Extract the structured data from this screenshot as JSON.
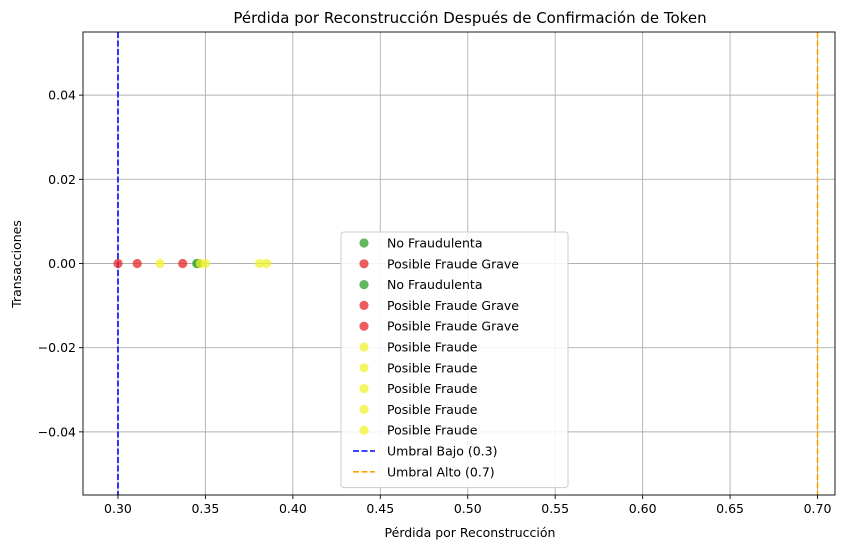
{
  "chart_data": {
    "type": "scatter",
    "title": "Pérdida por Reconstrucción Después de Confirmación de Token",
    "xlabel": "Pérdida por Reconstrucción",
    "ylabel": "Transacciones",
    "xlim": [
      0.28,
      0.71
    ],
    "ylim": [
      -0.055,
      0.055
    ],
    "x_ticks": [
      "0.30",
      "0.35",
      "0.40",
      "0.45",
      "0.50",
      "0.55",
      "0.60",
      "0.65",
      "0.70"
    ],
    "y_ticks": [
      "0.04",
      "0.02",
      "0.00",
      "−0.02",
      "−0.04"
    ],
    "grid": true,
    "legend_position": "lower-center",
    "colors": {
      "green": "#2ca02c",
      "red": "#e8262a",
      "yellow": "#f2f230",
      "blue_line": "#0000ff",
      "orange_line": "#ffa500"
    },
    "series": [
      {
        "name": "No Fraudulenta",
        "color": "green",
        "points": [
          [
            0.345,
            0
          ]
        ]
      },
      {
        "name": "Posible Fraude Grave",
        "color": "red",
        "points": [
          [
            0.3,
            0
          ]
        ]
      },
      {
        "name": "No Fraudulenta",
        "color": "green",
        "points": [
          [
            0.346,
            0
          ]
        ]
      },
      {
        "name": "Posible Fraude Grave",
        "color": "red",
        "points": [
          [
            0.311,
            0
          ]
        ]
      },
      {
        "name": "Posible Fraude Grave",
        "color": "red",
        "points": [
          [
            0.337,
            0
          ]
        ]
      },
      {
        "name": "Posible Fraude",
        "color": "yellow",
        "points": [
          [
            0.324,
            0
          ]
        ]
      },
      {
        "name": "Posible Fraude",
        "color": "yellow",
        "points": [
          [
            0.347,
            0
          ]
        ]
      },
      {
        "name": "Posible Fraude",
        "color": "yellow",
        "points": [
          [
            0.35,
            0
          ]
        ]
      },
      {
        "name": "Posible Fraude",
        "color": "yellow",
        "points": [
          [
            0.381,
            0
          ]
        ]
      },
      {
        "name": "Posible Fraude",
        "color": "yellow",
        "points": [
          [
            0.385,
            0
          ]
        ]
      }
    ],
    "vlines": [
      {
        "name": "Umbral Bajo (0.3)",
        "x": 0.3,
        "color": "blue_line"
      },
      {
        "name": "Umbral Alto (0.7)",
        "x": 0.7,
        "color": "orange_line"
      }
    ]
  }
}
